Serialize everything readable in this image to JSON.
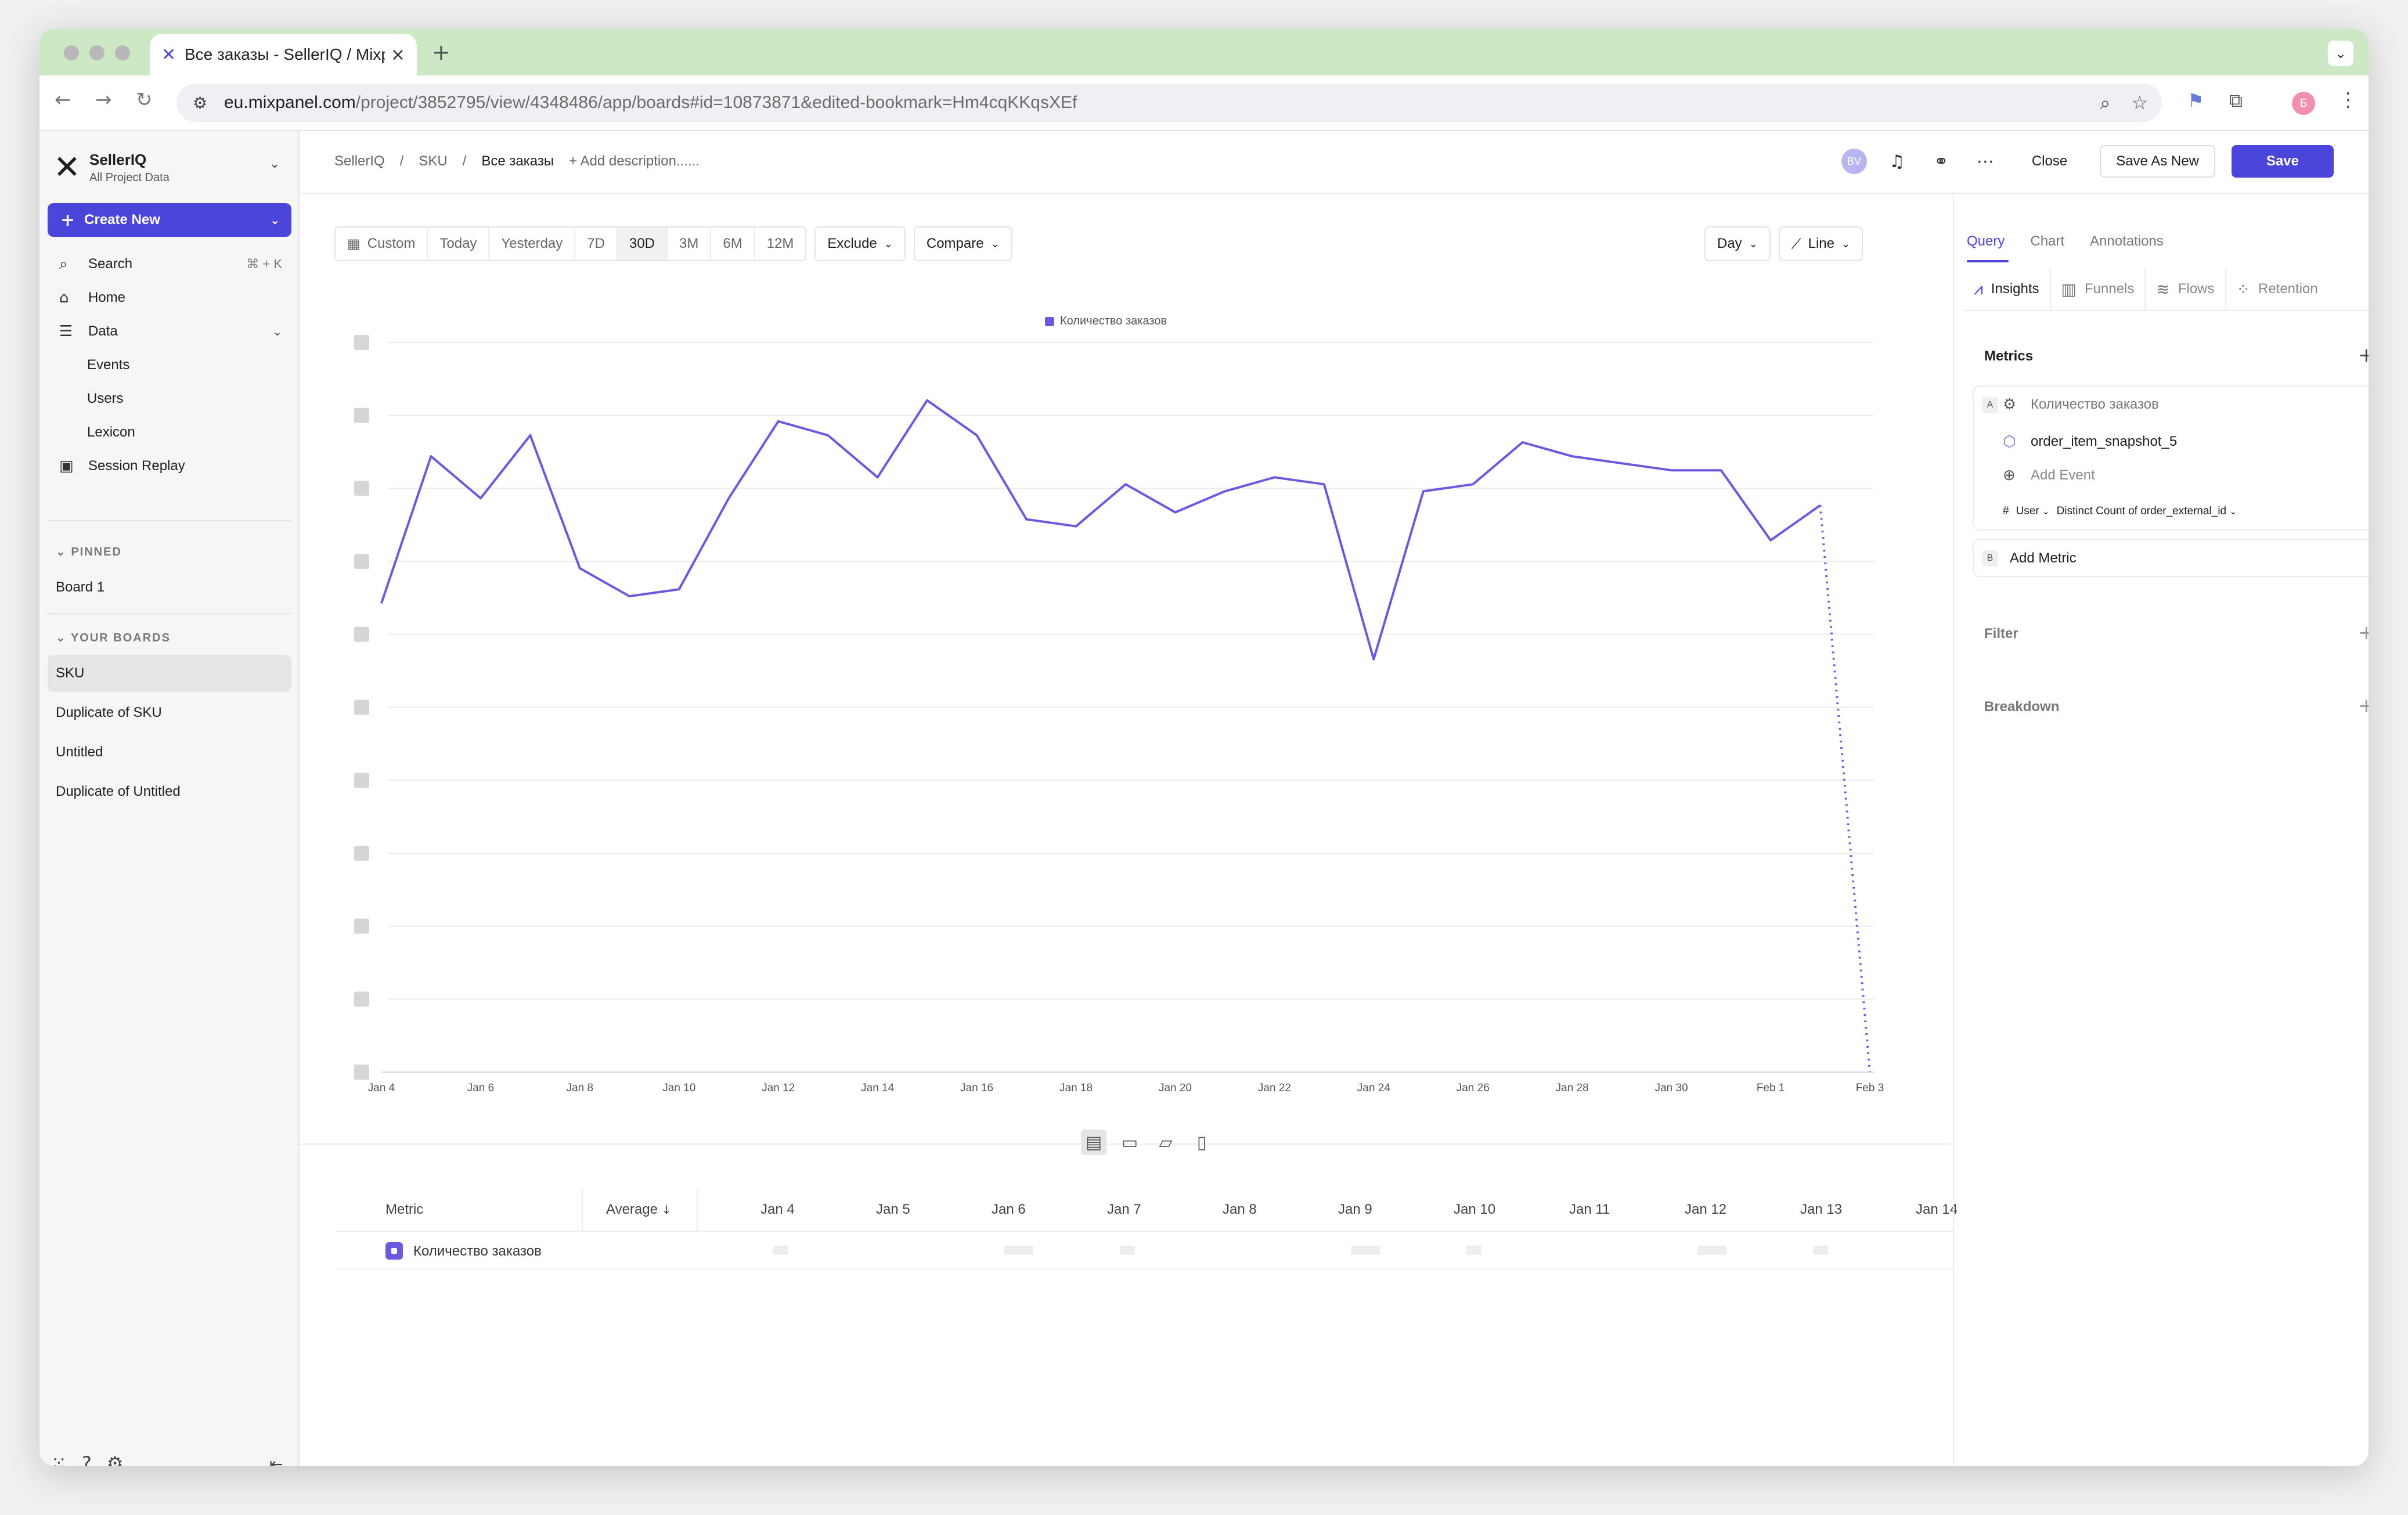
{
  "browser": {
    "tab_title": "Все заказы - SellerIQ / Mixpa",
    "url_host": "eu.mixpanel.com",
    "url_path": "/project/3852795/view/4348486/app/boards#id=10873871&edited-bookmark=Hm4cqKKqsXEf",
    "profile_initial": "Б"
  },
  "sidebar": {
    "org_name": "SellerIQ",
    "org_sub": "All Project Data",
    "create_label": "Create New",
    "search_label": "Search",
    "search_shortcut": "⌘ + K",
    "home_label": "Home",
    "data_label": "Data",
    "data_items": [
      "Events",
      "Users",
      "Lexicon"
    ],
    "session_replay_label": "Session Replay",
    "pinned_header": "PINNED",
    "pinned": [
      "Board 1"
    ],
    "boards_header": "YOUR BOARDS",
    "boards": [
      "SKU",
      "Duplicate of SKU",
      "Untitled",
      "Duplicate of Untitled"
    ]
  },
  "header": {
    "breadcrumb": [
      "SellerIQ",
      "SKU",
      "Все заказы"
    ],
    "sep": "/",
    "add_description": "+ Add description......",
    "avatar_initials": "BV",
    "close_label": "Close",
    "save_as_new_label": "Save As New",
    "save_label": "Save"
  },
  "controls": {
    "ranges": [
      "Custom",
      "Today",
      "Yesterday",
      "7D",
      "30D",
      "3M",
      "6M",
      "12M"
    ],
    "active_range": "30D",
    "exclude_label": "Exclude",
    "compare_label": "Compare",
    "granularity": "Day",
    "chart_type_label": "Line"
  },
  "chart_data": {
    "type": "line",
    "series": [
      {
        "name": "Количество заказов",
        "values": [
          67,
          88,
          82,
          91,
          72,
          68,
          69,
          82,
          93,
          91,
          85,
          96,
          91,
          79,
          78,
          84,
          80,
          83,
          85,
          84,
          59,
          83,
          84,
          90,
          88,
          87,
          86,
          86,
          76,
          81,
          0
        ]
      }
    ],
    "x_ticks": [
      "Jan 4",
      "Jan 6",
      "Jan 8",
      "Jan 10",
      "Jan 12",
      "Jan 14",
      "Jan 16",
      "Jan 18",
      "Jan 20",
      "Jan 22",
      "Jan 24",
      "Jan 26",
      "Jan 28",
      "Jan 30",
      "Feb 1",
      "Feb 3"
    ],
    "ylim": [
      0,
      108
    ],
    "y_gridlines": 10,
    "incomplete_last_point": true,
    "grid": true,
    "legend": "top-center",
    "color": "#6a5ae0"
  },
  "table": {
    "metric_header": "Metric",
    "average_header": "Average",
    "date_headers": [
      "Jan 4",
      "Jan 5",
      "Jan 6",
      "Jan 7",
      "Jan 8",
      "Jan 9",
      "Jan 10",
      "Jan 11",
      "Jan 12",
      "Jan 13",
      "Jan 14"
    ],
    "row_label": "Количество заказов"
  },
  "right_panel": {
    "tabs": [
      "Query",
      "Chart",
      "Annotations"
    ],
    "active_tab": "Query",
    "modes": [
      "Insights",
      "Funnels",
      "Flows",
      "Retention"
    ],
    "active_mode": "Insights",
    "metrics_header": "Metrics",
    "metric_letter": "A",
    "metric_name": "Количество заказов",
    "event_name": "order_item_snapshot_5",
    "add_event": "Add Event",
    "aggregation_entity": "User",
    "aggregation": "Distinct Count of order_external_id",
    "add_metric_letter": "B",
    "add_metric": "Add Metric",
    "filter_header": "Filter",
    "breakdown_header": "Breakdown"
  }
}
